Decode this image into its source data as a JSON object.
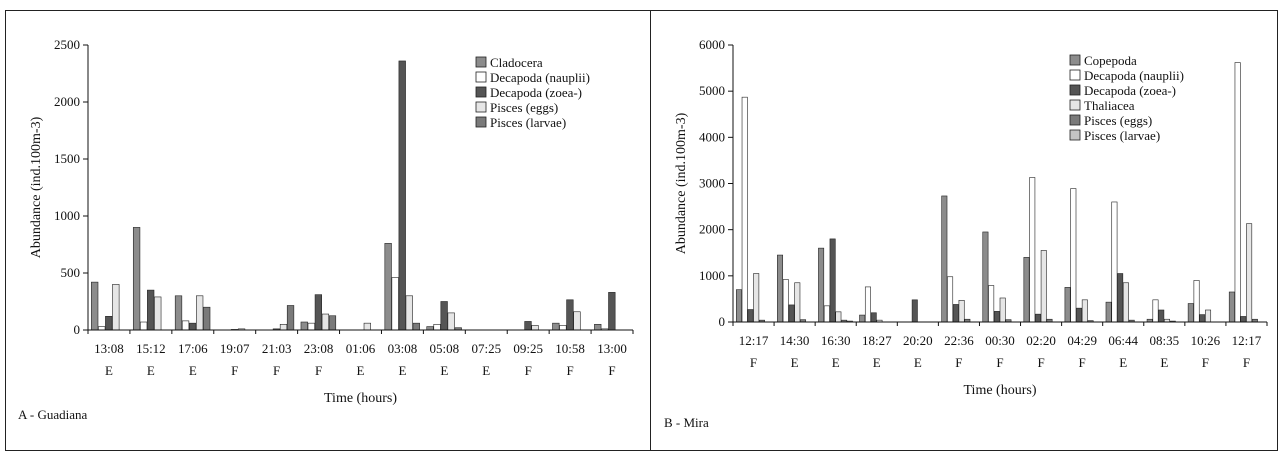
{
  "colors": {
    "background": "#ffffff",
    "series_fills": [
      "#8c8c8c",
      "#ffffff",
      "#555555",
      "#e6e6e6",
      "#7a7a7a",
      "#c4c4c4"
    ]
  },
  "chart_data": [
    {
      "type": "bar",
      "panel_label": "A - Guadiana",
      "title": "",
      "xlabel": "Time (hours)",
      "ylabel": "Abundance (ind.100m-3)",
      "ylim": [
        0,
        2500
      ],
      "yticks": [
        0,
        500,
        1000,
        1500,
        2000,
        2500
      ],
      "grid": false,
      "legend": "top-right",
      "categories": [
        "13:08",
        "15:12",
        "17:06",
        "19:07",
        "21:03",
        "23:08",
        "01:06",
        "03:08",
        "05:08",
        "07:25",
        "09:25",
        "10:58",
        "13:00"
      ],
      "tide": [
        "E",
        "E",
        "E",
        "F",
        "F",
        "F",
        "E",
        "E",
        "E",
        "E",
        "F",
        "F",
        "F"
      ],
      "series": [
        {
          "name": "Cladocera",
          "values": [
            420,
            900,
            300,
            0,
            0,
            70,
            0,
            760,
            30,
            0,
            0,
            60,
            50
          ]
        },
        {
          "name": "Decapoda (nauplii)",
          "values": [
            30,
            70,
            80,
            0,
            0,
            60,
            0,
            460,
            50,
            0,
            0,
            40,
            10
          ]
        },
        {
          "name": "Decapoda (zoea-)",
          "values": [
            120,
            350,
            60,
            5,
            10,
            310,
            0,
            2360,
            250,
            0,
            75,
            265,
            330
          ]
        },
        {
          "name": "Pisces (eggs)",
          "values": [
            400,
            290,
            300,
            10,
            50,
            140,
            60,
            300,
            150,
            0,
            40,
            160,
            0
          ]
        },
        {
          "name": "Pisces (larvae)",
          "values": [
            0,
            0,
            200,
            0,
            215,
            125,
            0,
            60,
            20,
            0,
            0,
            0,
            0
          ]
        }
      ]
    },
    {
      "type": "bar",
      "panel_label": "B - Mira",
      "title": "",
      "xlabel": "Time (hours)",
      "ylabel": "Abundance (ind.100m-3)",
      "ylim": [
        0,
        6000
      ],
      "yticks": [
        0,
        1000,
        2000,
        3000,
        4000,
        5000,
        6000
      ],
      "grid": false,
      "legend": "top-right",
      "categories": [
        "12:17",
        "14:30",
        "16:30",
        "18:27",
        "20:20",
        "22:36",
        "00:30",
        "02:20",
        "04:29",
        "06:44",
        "08:35",
        "10:26",
        "12:17"
      ],
      "tide": [
        "F",
        "E",
        "E",
        "E",
        "E",
        "F",
        "F",
        "F",
        "F",
        "E",
        "E",
        "F",
        "F"
      ],
      "series": [
        {
          "name": "Copepoda",
          "values": [
            700,
            1450,
            1600,
            150,
            0,
            2730,
            1950,
            1400,
            750,
            430,
            60,
            400,
            650
          ]
        },
        {
          "name": "Decapoda (nauplii)",
          "values": [
            4870,
            920,
            350,
            760,
            0,
            980,
            790,
            3130,
            2890,
            2600,
            480,
            900,
            5620
          ]
        },
        {
          "name": "Decapoda (zoea-)",
          "values": [
            270,
            370,
            1800,
            200,
            480,
            380,
            230,
            170,
            300,
            1050,
            260,
            160,
            120
          ]
        },
        {
          "name": "Thaliacea",
          "values": [
            1050,
            850,
            220,
            40,
            0,
            470,
            520,
            1550,
            480,
            850,
            60,
            260,
            2130
          ]
        },
        {
          "name": "Pisces (eggs)",
          "values": [
            40,
            50,
            40,
            0,
            0,
            60,
            50,
            60,
            30,
            40,
            20,
            0,
            60
          ]
        },
        {
          "name": "Pisces (larvae)",
          "values": [
            0,
            0,
            20,
            0,
            0,
            0,
            0,
            0,
            0,
            0,
            0,
            0,
            0
          ]
        }
      ]
    }
  ]
}
